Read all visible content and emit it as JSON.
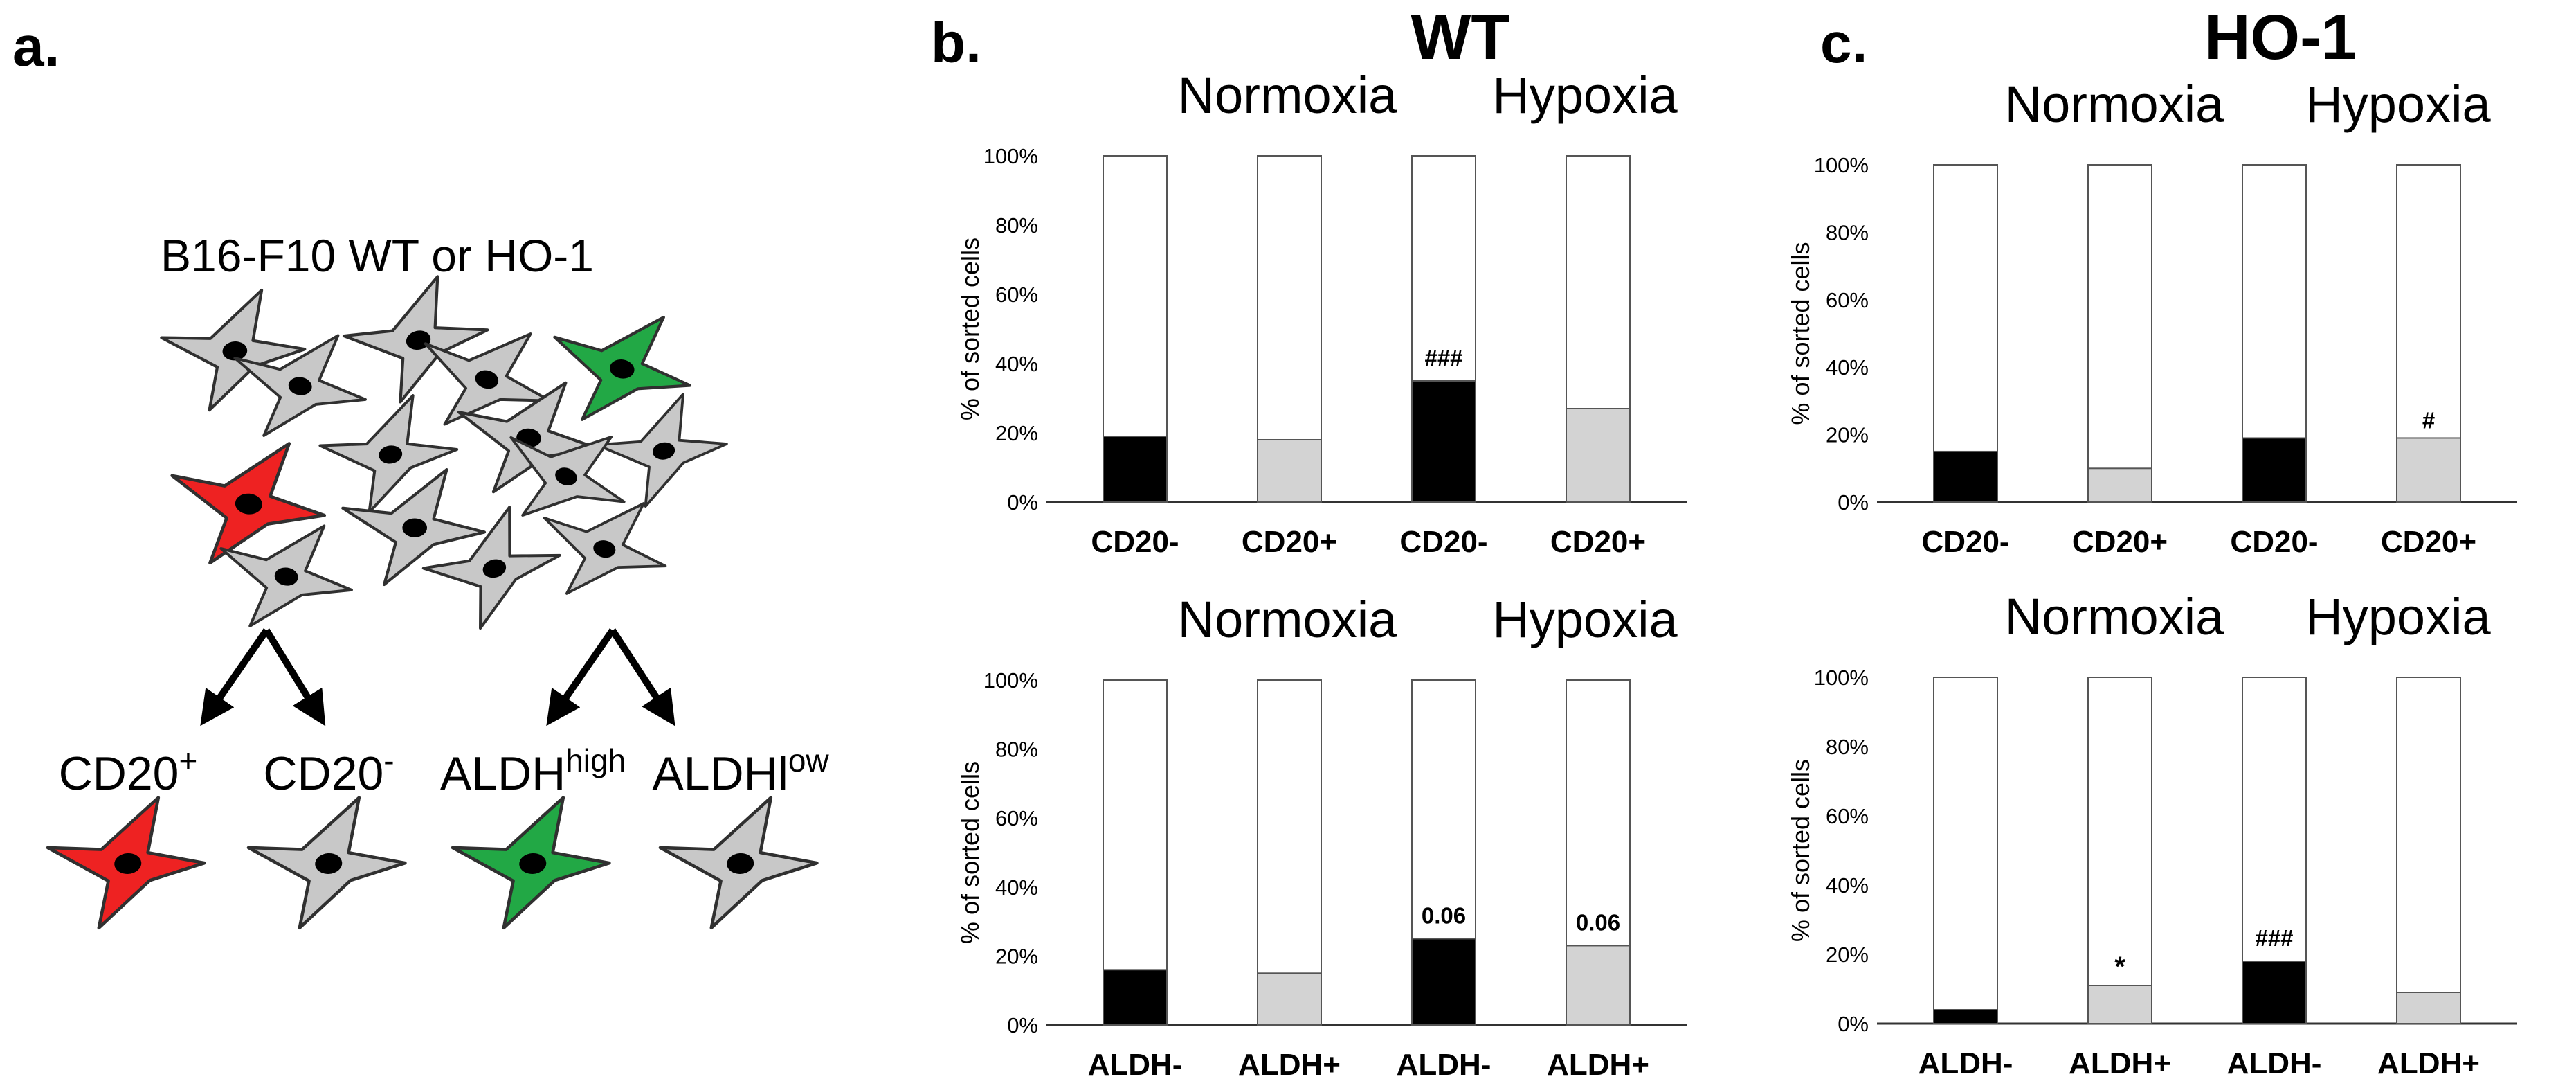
{
  "panel_a": {
    "label": "a.",
    "title": "B16-F10 WT or HO-1",
    "colors": {
      "gray": "#c8c8c8",
      "red": "#ee2222",
      "green": "#22a845",
      "nucleus": "#000000",
      "outline": "#303030"
    },
    "outputs": [
      {
        "base": "CD20",
        "sup": "+",
        "color": "red"
      },
      {
        "base": "CD20",
        "sup": "-",
        "color": "gray"
      },
      {
        "base": "ALDH",
        "sup": "high",
        "color": "green"
      },
      {
        "base": "ALDHl",
        "sup": "ow",
        "color": "gray"
      }
    ]
  },
  "panel_b": {
    "label": "b.",
    "title": "WT"
  },
  "panel_c": {
    "label": "c.",
    "title": "HO-1"
  },
  "colors": {
    "black_bar": "#000000",
    "gray_bar": "#d3d3d3",
    "empty_bar": "#ffffff",
    "stroke": "#555555"
  },
  "chart_data": [
    {
      "id": "b-top",
      "panel": "b",
      "type": "bar",
      "stacked_to": 100,
      "conditions": [
        "Normoxia",
        "Hypoxia"
      ],
      "ylabel": "% of sorted cells",
      "yticks": [
        "0%",
        "20%",
        "40%",
        "60%",
        "80%",
        "100%"
      ],
      "ylim": [
        0,
        100
      ],
      "categories": [
        "CD20-",
        "CD20+",
        "CD20-",
        "CD20+"
      ],
      "values": [
        19,
        18,
        35,
        27
      ],
      "fills": [
        "black",
        "gray",
        "black",
        "gray"
      ],
      "annotations": [
        "",
        "",
        "###",
        ""
      ]
    },
    {
      "id": "b-bottom",
      "panel": "b",
      "type": "bar",
      "stacked_to": 100,
      "conditions": [
        "Normoxia",
        "Hypoxia"
      ],
      "ylabel": "% of sorted cells",
      "yticks": [
        "0%",
        "20%",
        "40%",
        "60%",
        "80%",
        "100%"
      ],
      "ylim": [
        0,
        100
      ],
      "categories": [
        "ALDH-",
        "ALDH+",
        "ALDH-",
        "ALDH+"
      ],
      "values": [
        16,
        15,
        25,
        23
      ],
      "fills": [
        "black",
        "gray",
        "black",
        "gray"
      ],
      "annotations": [
        "",
        "",
        "0.06",
        "0.06"
      ]
    },
    {
      "id": "c-top",
      "panel": "c",
      "type": "bar",
      "stacked_to": 100,
      "conditions": [
        "Normoxia",
        "Hypoxia"
      ],
      "ylabel": "% of sorted cells",
      "yticks": [
        "0%",
        "20%",
        "40%",
        "60%",
        "80%",
        "100%"
      ],
      "ylim": [
        0,
        100
      ],
      "categories": [
        "CD20-",
        "CD20+",
        "CD20-",
        "CD20+"
      ],
      "values": [
        15,
        10,
        19,
        19
      ],
      "fills": [
        "black",
        "gray",
        "black",
        "gray"
      ],
      "annotations": [
        "",
        "",
        "",
        "#"
      ]
    },
    {
      "id": "c-bottom",
      "panel": "c",
      "type": "bar",
      "stacked_to": 100,
      "conditions": [
        "Normoxia",
        "Hypoxia"
      ],
      "ylabel": "% of sorted cells",
      "yticks": [
        "0%",
        "20%",
        "40%",
        "60%",
        "80%",
        "100%"
      ],
      "ylim": [
        0,
        100
      ],
      "categories": [
        "ALDH-",
        "ALDH+",
        "ALDH-",
        "ALDH+"
      ],
      "values": [
        4,
        11,
        18,
        9
      ],
      "fills": [
        "black",
        "gray",
        "black",
        "gray"
      ],
      "annotations": [
        "",
        "*",
        "###",
        ""
      ]
    }
  ]
}
